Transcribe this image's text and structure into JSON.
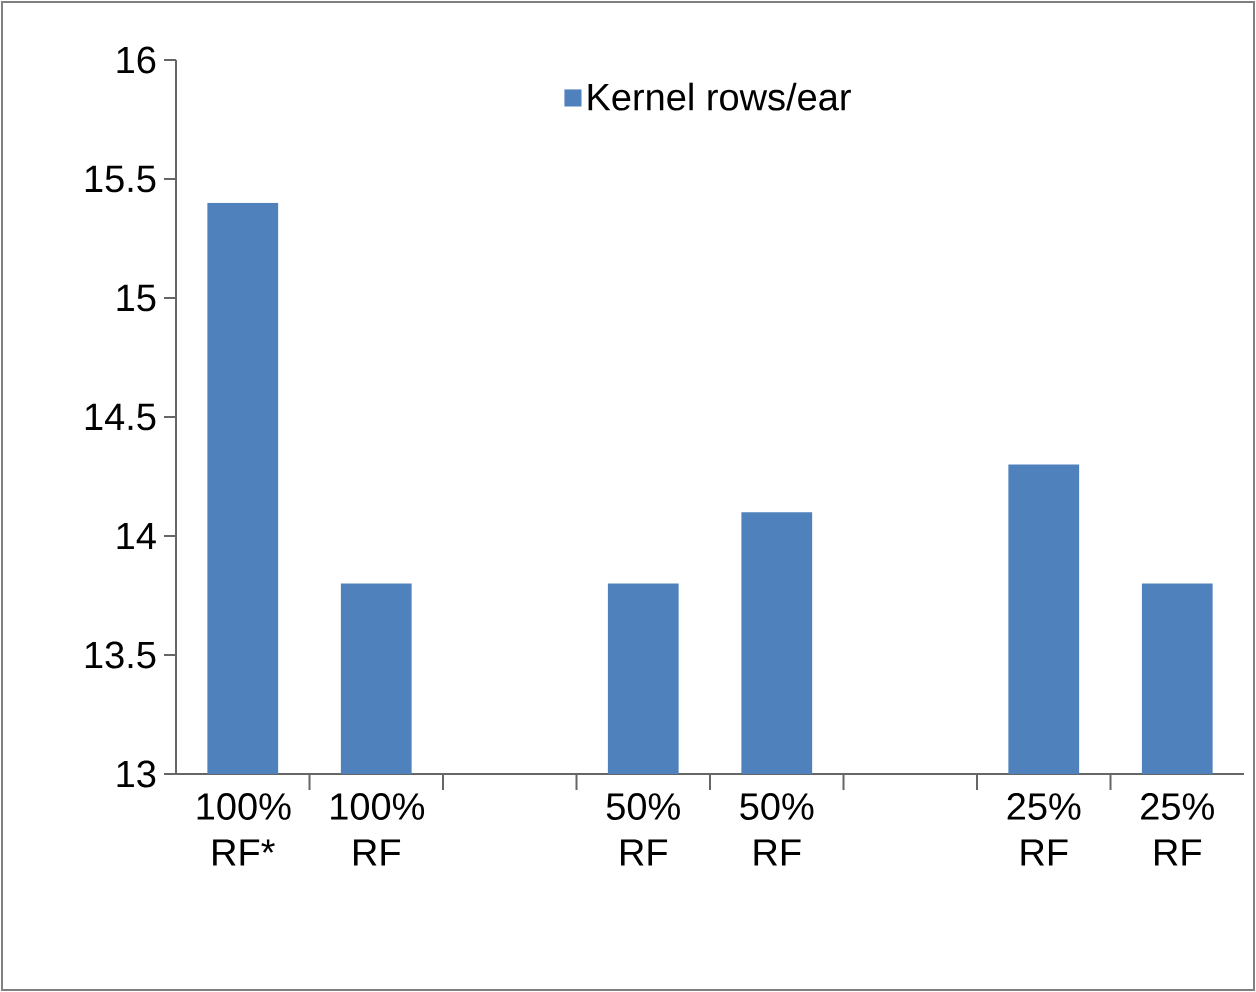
{
  "chart_data": {
    "type": "bar",
    "categories": [
      "100% RF*",
      "100% RF",
      null,
      "50% RF",
      "50% RF",
      null,
      "25% RF",
      "25% RF"
    ],
    "series": [
      {
        "name": "Kernel rows/ear",
        "color": "#4f81bd",
        "values": [
          15.4,
          13.8,
          null,
          13.8,
          14.1,
          null,
          14.3,
          13.8
        ]
      }
    ],
    "ylim": [
      13,
      16
    ],
    "yticks": [
      13,
      13.5,
      14,
      14.5,
      15,
      15.5,
      16
    ],
    "legend": "top",
    "grid": false
  }
}
